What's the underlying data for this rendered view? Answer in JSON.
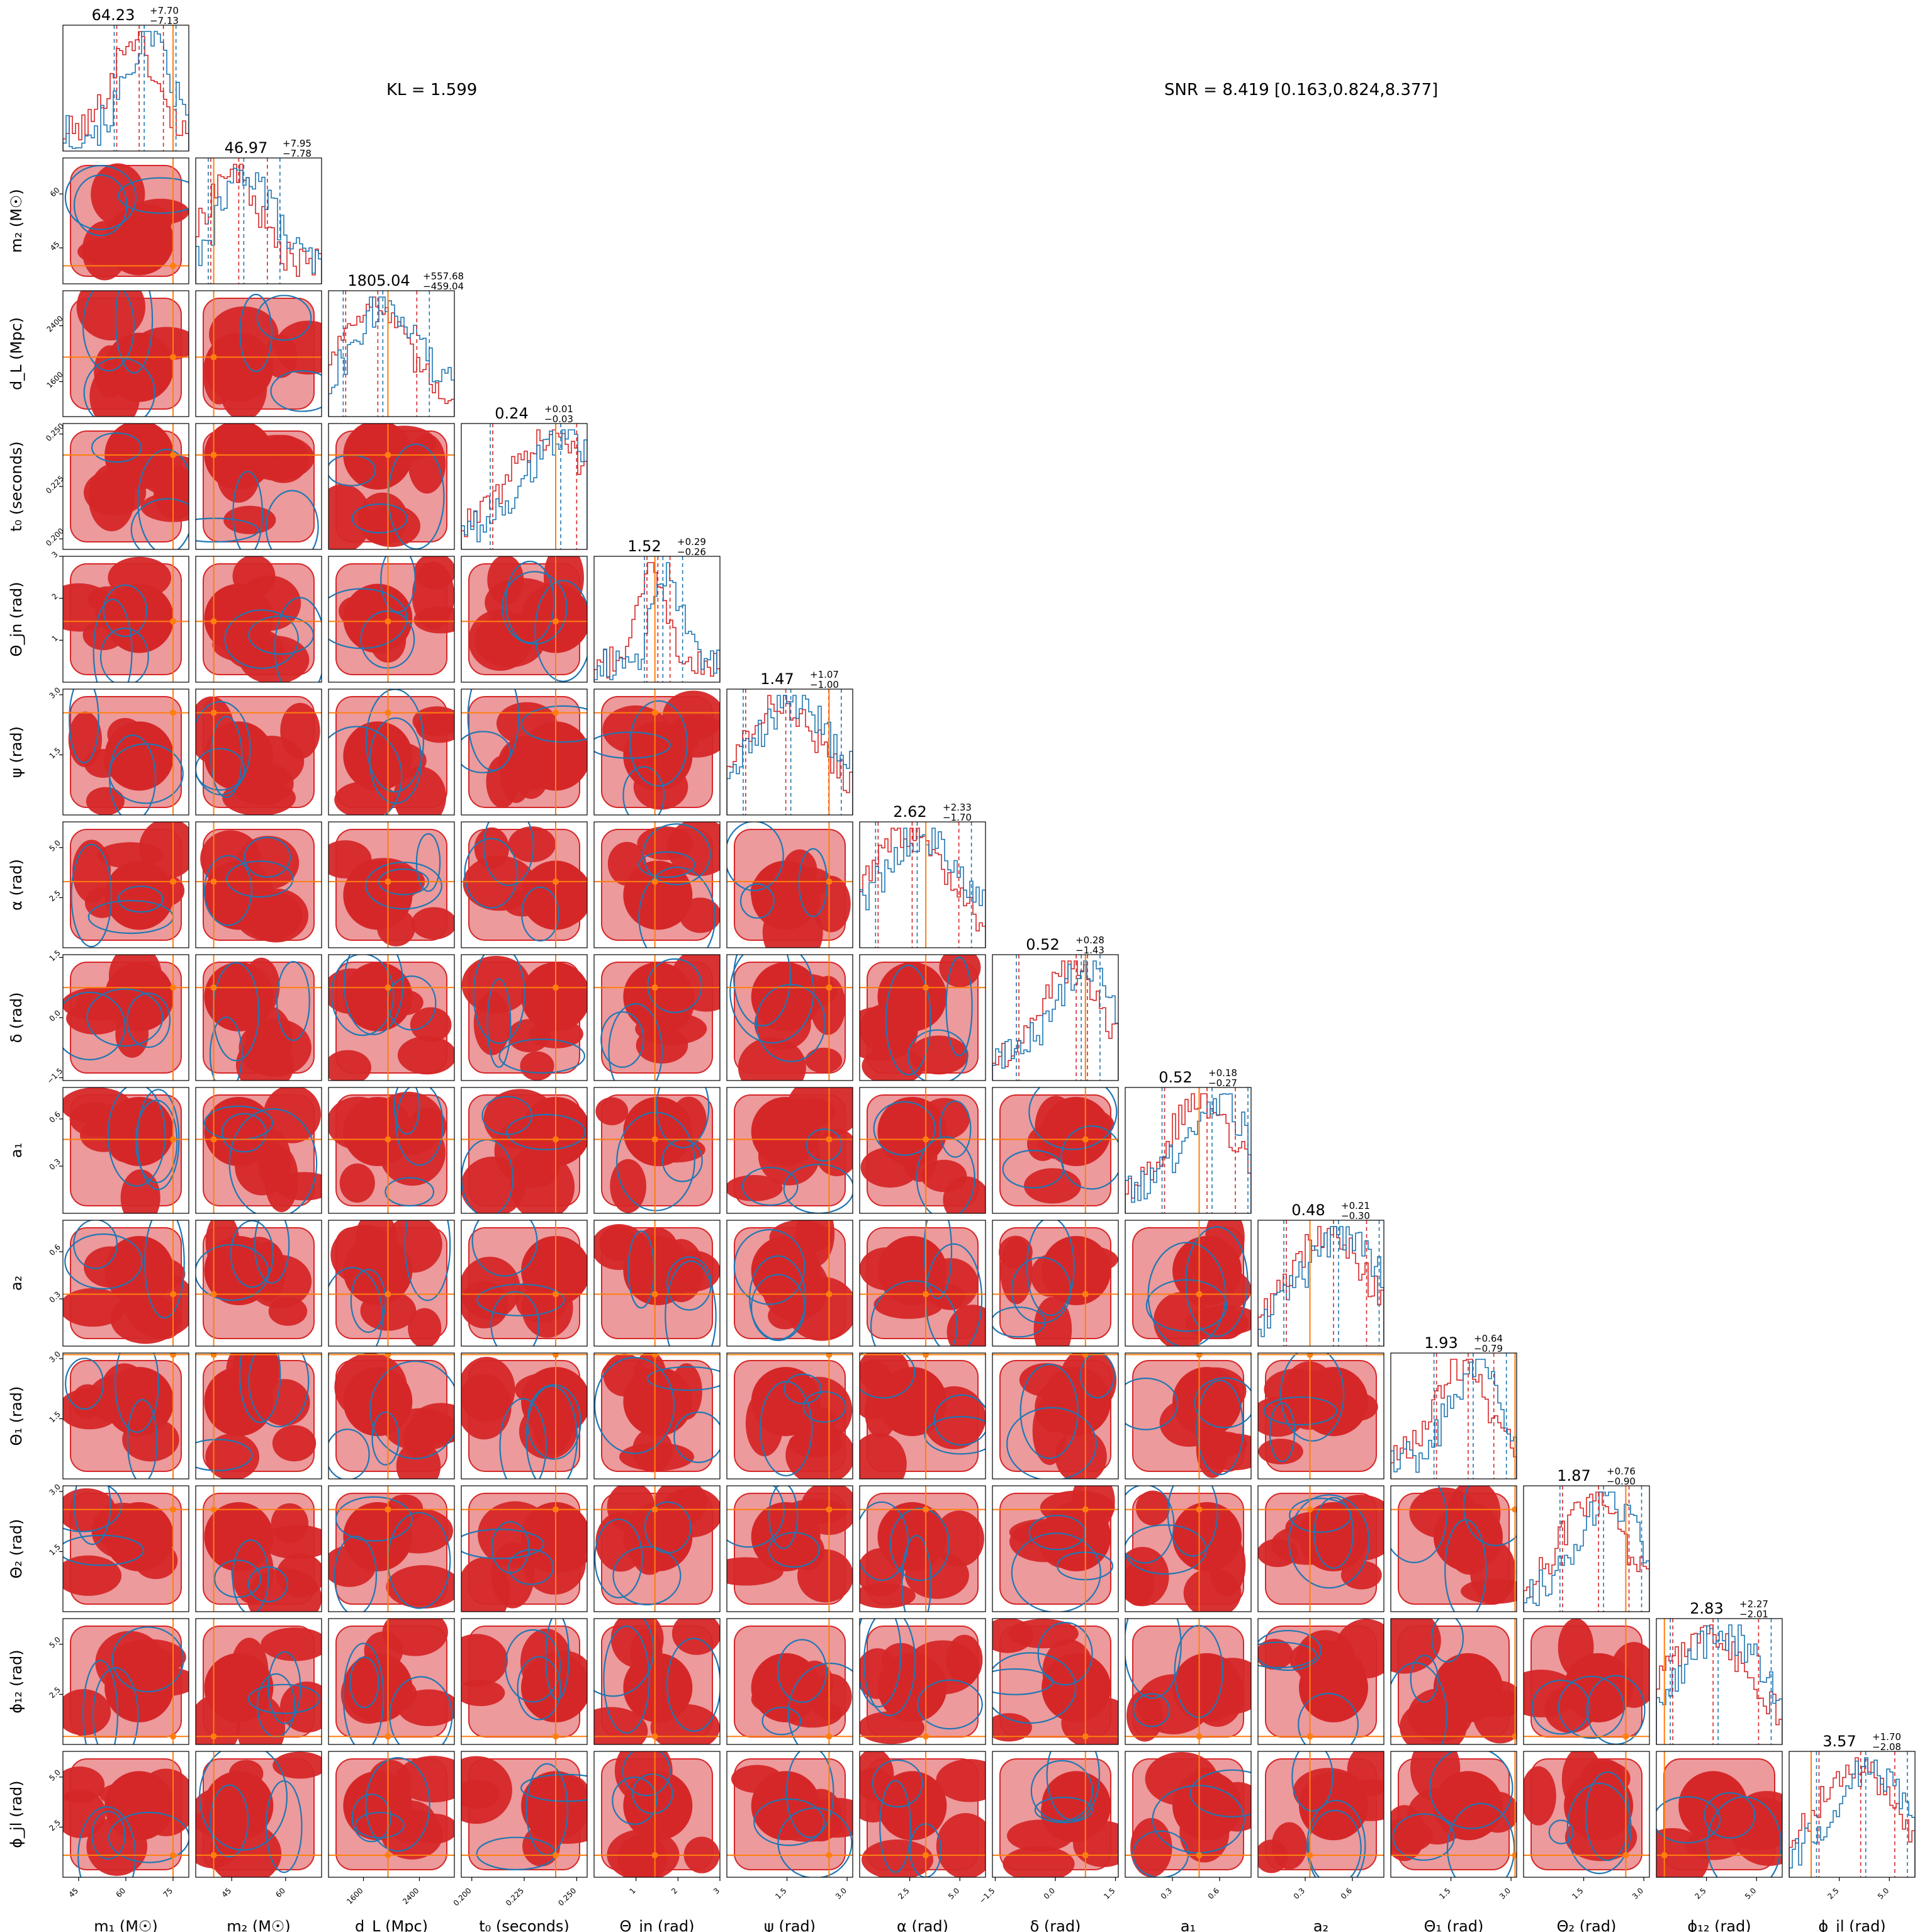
{
  "kl_text": "KL = 1.599",
  "snr_text": "SNR = 8.419 [0.163,0.824,8.377]",
  "colors": {
    "posterior_a": "#d62728",
    "posterior_a_light": "#ec9a9c",
    "posterior_b": "#1f77b4",
    "truth": "#ff7f0e",
    "frame": "#000000"
  },
  "chart_data": {
    "type": "corner",
    "parameters": [
      {
        "label": "m1",
        "axis_label": "m₁ (M☉)",
        "median": "64.23",
        "plus": "+7.70",
        "minus": "−7.13",
        "range": [
          40,
          80
        ],
        "ticks": [
          "45",
          "60",
          "75"
        ],
        "ticks_v": [
          45,
          60,
          75
        ],
        "truth": 75
      },
      {
        "label": "m2",
        "axis_label": "m₂ (M☉)",
        "median": "46.97",
        "plus": "+7.95",
        "minus": "−7.78",
        "range": [
          35,
          70
        ],
        "ticks": [
          "45",
          "60"
        ],
        "ticks_v": [
          45,
          60
        ],
        "truth": 40
      },
      {
        "label": "dL",
        "axis_label": "d_L (Mpc)",
        "median": "1805.04",
        "plus": "+557.68",
        "minus": "−459.04",
        "range": [
          1100,
          2900
        ],
        "ticks": [
          "1600",
          "2400"
        ],
        "ticks_v": [
          1600,
          2400
        ],
        "truth": 1950
      },
      {
        "label": "t0",
        "axis_label": "t₀ (seconds)",
        "median": "0.24",
        "plus": "+0.01",
        "minus": "−0.03",
        "range": [
          0.195,
          0.255
        ],
        "ticks": [
          "0.200",
          "0.225",
          "0.250"
        ],
        "ticks_v": [
          0.2,
          0.225,
          0.25
        ],
        "truth": 0.24
      },
      {
        "label": "theta_jn",
        "axis_label": "Θ_jn (rad)",
        "median": "1.52",
        "plus": "+0.29",
        "minus": "−0.26",
        "range": [
          0,
          3
        ],
        "ticks": [
          "1",
          "2",
          "3"
        ],
        "ticks_v": [
          1,
          2,
          3
        ],
        "truth": 1.45
      },
      {
        "label": "psi",
        "axis_label": "ψ (rad)",
        "median": "1.47",
        "plus": "+1.07",
        "minus": "−1.00",
        "range": [
          0,
          3.14
        ],
        "ticks": [
          "1.5",
          "3.0"
        ],
        "ticks_v": [
          1.5,
          3.0
        ],
        "truth": 2.55
      },
      {
        "label": "alpha",
        "axis_label": "α (rad)",
        "median": "2.62",
        "plus": "+2.33",
        "minus": "−1.70",
        "range": [
          0,
          6.28
        ],
        "ticks": [
          "2.5",
          "5.0"
        ],
        "ticks_v": [
          2.5,
          5.0
        ],
        "truth": 3.3
      },
      {
        "label": "delta",
        "axis_label": "δ (rad)",
        "median": "0.52",
        "plus": "+0.28",
        "minus": "−1.43",
        "range": [
          -1.57,
          1.57
        ],
        "ticks": [
          "−1.5",
          "0.0",
          "1.5"
        ],
        "ticks_v": [
          -1.5,
          0.0,
          1.5
        ],
        "truth": 0.75
      },
      {
        "label": "a1",
        "axis_label": "a₁",
        "median": "0.52",
        "plus": "+0.18",
        "minus": "−0.27",
        "range": [
          0,
          0.8
        ],
        "ticks": [
          "0.3",
          "0.6"
        ],
        "ticks_v": [
          0.3,
          0.6
        ],
        "truth": 0.47
      },
      {
        "label": "a2",
        "axis_label": "a₂",
        "median": "0.48",
        "plus": "+0.21",
        "minus": "−0.30",
        "range": [
          0,
          0.8
        ],
        "ticks": [
          "0.3",
          "0.6"
        ],
        "ticks_v": [
          0.3,
          0.6
        ],
        "truth": 0.33
      },
      {
        "label": "theta1",
        "axis_label": "Θ₁ (rad)",
        "median": "1.93",
        "plus": "+0.64",
        "minus": "−0.79",
        "range": [
          0,
          3.14
        ],
        "ticks": [
          "1.5",
          "3.0"
        ],
        "ticks_v": [
          1.5,
          3.0
        ],
        "truth": 3.1
      },
      {
        "label": "theta2",
        "axis_label": "Θ₂ (rad)",
        "median": "1.87",
        "plus": "+0.76",
        "minus": "−0.90",
        "range": [
          0,
          3.14
        ],
        "ticks": [
          "1.5",
          "3.0"
        ],
        "ticks_v": [
          1.5,
          3.0
        ],
        "truth": 2.55
      },
      {
        "label": "phi12",
        "axis_label": "ϕ₁₂ (rad)",
        "median": "2.83",
        "plus": "+2.27",
        "minus": "−2.01",
        "range": [
          0,
          6.28
        ],
        "ticks": [
          "2.5",
          "5.0"
        ],
        "ticks_v": [
          2.5,
          5.0
        ],
        "truth": 0.4
      },
      {
        "label": "phi_jl",
        "axis_label": "ϕ_jl (rad)",
        "median": "3.57",
        "plus": "+1.70",
        "minus": "−2.08",
        "range": [
          0,
          6.28
        ],
        "ticks": [
          "2.5",
          "5.0"
        ],
        "ticks_v": [
          2.5,
          5.0
        ],
        "truth": 1.1
      }
    ]
  }
}
